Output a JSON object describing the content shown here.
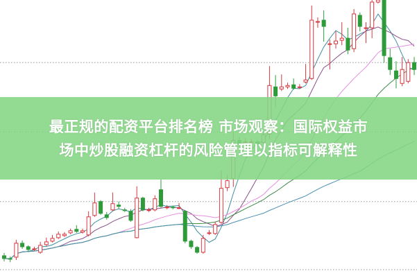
{
  "headline": {
    "line1": "最正规的配资平台排名榜 市场观察：国际权益市",
    "line2": "场中炒股融资杠杆的风险管理以指标可解释性"
  },
  "colors": {
    "up": "#d9363e",
    "down": "#2e9a3a",
    "banner": "#84d684",
    "grid": "#9a9a9a",
    "ma_lines": [
      "#3d8fa0",
      "#8a4f8a",
      "#e78fe0",
      "#3f8a4a",
      "#4a8fb0"
    ]
  },
  "chart_data": {
    "type": "candlestick",
    "title": "",
    "xlabel": "",
    "ylabel": "",
    "grid": true,
    "ylim": [
      0,
      400
    ],
    "gridlines_y": [
      12,
      110,
      210,
      310
    ],
    "candles": [
      [
        32,
        28,
        36,
        24
      ],
      [
        28,
        27,
        31,
        23
      ],
      [
        30,
        50,
        55,
        26
      ],
      [
        50,
        45,
        54,
        42
      ],
      [
        45,
        41,
        47,
        38
      ],
      [
        41,
        42,
        45,
        39
      ],
      [
        37,
        47,
        52,
        35
      ],
      [
        48,
        52,
        58,
        46
      ],
      [
        53,
        57,
        62,
        51
      ],
      [
        58,
        63,
        67,
        56
      ],
      [
        61,
        63,
        66,
        59
      ],
      [
        65,
        68,
        71,
        63
      ],
      [
        70,
        67,
        76,
        65
      ],
      [
        66,
        68,
        71,
        64
      ],
      [
        62,
        88,
        96,
        60
      ],
      [
        90,
        108,
        123,
        88
      ],
      [
        110,
        93,
        112,
        91
      ],
      [
        91,
        87,
        95,
        84
      ],
      [
        98,
        107,
        123,
        96
      ],
      [
        105,
        103,
        110,
        100
      ],
      [
        98,
        97,
        101,
        95
      ],
      [
        96,
        83,
        99,
        81
      ],
      [
        58,
        115,
        132,
        57
      ],
      [
        115,
        98,
        117,
        96
      ],
      [
        97,
        98,
        101,
        95
      ],
      [
        98,
        114,
        119,
        96
      ],
      [
        127,
        103,
        142,
        101
      ],
      [
        101,
        102,
        105,
        99
      ],
      [
        102,
        101,
        104,
        99
      ],
      [
        100,
        101,
        108,
        99
      ],
      [
        96,
        53,
        98,
        50
      ],
      [
        53,
        45,
        55,
        42
      ],
      [
        44,
        37,
        46,
        35
      ],
      [
        37,
        57,
        62,
        35
      ],
      [
        64,
        65,
        69,
        62
      ],
      [
        64,
        77,
        81,
        62
      ],
      [
        80,
        129,
        155,
        78
      ],
      [
        130,
        140,
        148,
        125
      ],
      [
        143,
        198,
        210,
        131
      ],
      [
        198,
        192,
        203,
        190
      ],
      [
        196,
        196,
        201,
        193
      ],
      [
        195,
        196,
        200,
        193
      ],
      [
        196,
        192,
        199,
        190
      ],
      [
        195,
        206,
        210,
        193
      ],
      [
        207,
        277,
        305,
        200
      ],
      [
        275,
        262,
        292,
        245
      ],
      [
        272,
        275,
        293,
        269
      ],
      [
        275,
        277,
        281,
        272
      ],
      [
        278,
        273,
        287,
        271
      ],
      [
        274,
        275,
        279,
        272
      ],
      [
        282,
        285,
        308,
        280
      ],
      [
        287,
        371,
        392,
        285
      ],
      [
        368,
        369,
        375,
        360
      ],
      [
        371,
        362,
        385,
        340
      ],
      [
        337,
        337,
        343,
        300
      ],
      [
        337,
        341,
        355,
        330
      ],
      [
        342,
        345,
        368,
        335
      ],
      [
        345,
        328,
        360,
        322
      ],
      [
        330,
        380,
        387,
        325
      ],
      [
        378,
        362,
        382,
        355
      ],
      [
        360,
        360,
        368,
        338
      ],
      [
        360,
        397,
        400,
        345
      ],
      [
        397,
        400,
        401,
        395
      ],
      [
        400,
        320,
        401,
        310
      ],
      [
        317,
        300,
        330,
        292
      ],
      [
        298,
        287,
        312,
        273
      ],
      [
        280,
        300,
        318,
        276
      ],
      [
        283,
        310,
        315,
        280
      ],
      [
        310,
        300,
        318,
        292
      ]
    ],
    "moving_average_periods": [
      5,
      10,
      20,
      30,
      60
    ]
  }
}
